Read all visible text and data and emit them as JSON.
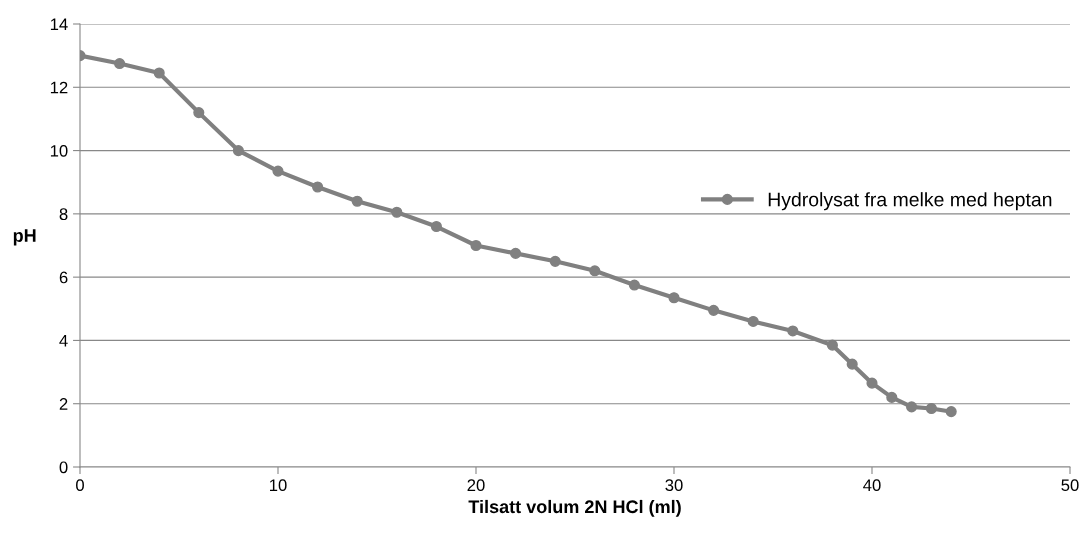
{
  "chart_data": {
    "type": "line",
    "xlabel": "Tilsatt volum 2N HCl (ml)",
    "ylabel": "pH",
    "xlim": [
      0,
      50
    ],
    "xticks": [
      0,
      10,
      20,
      30,
      40,
      50
    ],
    "ylim": [
      0,
      14
    ],
    "yticks": [
      0,
      2,
      4,
      6,
      8,
      10,
      12,
      14
    ],
    "grid": "y",
    "legend": "right",
    "marker": "circle",
    "line_style": "solid",
    "series": [
      {
        "name": "Hydrolysat fra melke med heptan",
        "color": "#808080",
        "x": [
          0,
          2,
          4,
          6,
          8,
          10,
          12,
          14,
          16,
          18,
          20,
          22,
          24,
          26,
          28,
          30,
          32,
          34,
          36,
          38,
          39,
          40,
          41,
          42,
          43,
          44
        ],
        "values": [
          13.0,
          12.75,
          12.45,
          11.2,
          10.0,
          9.35,
          8.85,
          8.4,
          8.05,
          7.6,
          7.0,
          6.75,
          6.5,
          6.2,
          5.75,
          5.35,
          4.95,
          4.6,
          4.3,
          3.85,
          3.25,
          2.65,
          2.2,
          1.9,
          1.85,
          1.75
        ]
      }
    ]
  }
}
